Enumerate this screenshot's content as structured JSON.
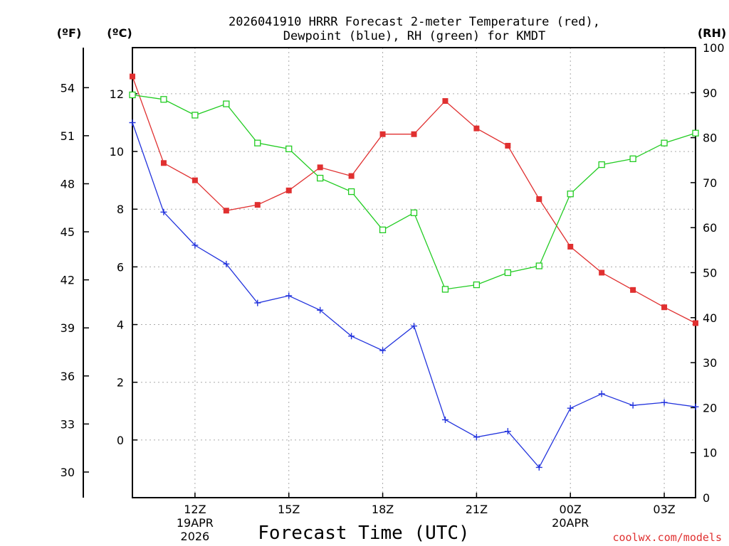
{
  "chart_data": {
    "type": "line",
    "title_line1": "2026041910 HRRR Forecast 2-meter Temperature (red),",
    "title_line2": "Dewpoint (blue), RH (green) for KMDT",
    "xlabel": "Forecast Time (UTC)",
    "credit": "coolwx.com/models",
    "units": {
      "fahrenheit": "(ºF)",
      "celsius": "(ºC)",
      "rh": "(RH)"
    },
    "x_hours": [
      10,
      11,
      12,
      13,
      14,
      15,
      16,
      17,
      18,
      19,
      20,
      21,
      22,
      23,
      24,
      25,
      26,
      27,
      28
    ],
    "xlim": [
      10,
      28
    ],
    "x_ticks": [
      {
        "hour": 12,
        "lines": [
          "12Z",
          "19APR",
          "2026"
        ]
      },
      {
        "hour": 15,
        "lines": [
          "15Z"
        ]
      },
      {
        "hour": 18,
        "lines": [
          "18Z"
        ]
      },
      {
        "hour": 21,
        "lines": [
          "21Z"
        ]
      },
      {
        "hour": 24,
        "lines": [
          "00Z",
          "20APR"
        ]
      },
      {
        "hour": 27,
        "lines": [
          "03Z"
        ]
      }
    ],
    "celsius_axis": {
      "ylim": [
        -2,
        13.6
      ],
      "ticks": [
        0,
        2,
        4,
        6,
        8,
        10,
        12
      ]
    },
    "fahrenheit_axis": {
      "ylim": [
        28.4,
        56.5
      ],
      "ticks": [
        30,
        33,
        36,
        39,
        42,
        45,
        48,
        51,
        54
      ]
    },
    "rh_axis": {
      "ylim": [
        0,
        100
      ],
      "ticks": [
        0,
        10,
        20,
        30,
        40,
        50,
        60,
        70,
        80,
        90,
        100
      ]
    },
    "series": [
      {
        "name": "Temperature",
        "axis": "celsius",
        "color": "#e03030",
        "marker": "filled-square",
        "values": [
          12.6,
          9.6,
          9.0,
          7.95,
          8.15,
          8.65,
          9.45,
          9.15,
          10.6,
          10.6,
          11.75,
          10.8,
          10.2,
          8.35,
          6.7,
          5.8,
          5.2,
          4.6,
          4.05
        ]
      },
      {
        "name": "Dewpoint",
        "axis": "celsius",
        "color": "#2233dd",
        "marker": "plus",
        "values": [
          11.0,
          7.9,
          6.75,
          6.1,
          4.75,
          5.0,
          4.5,
          3.6,
          3.1,
          3.95,
          0.7,
          0.1,
          0.3,
          -0.95,
          1.1,
          1.6,
          1.2,
          1.3,
          1.15
        ]
      },
      {
        "name": "RH",
        "axis": "rh",
        "color": "#22cc22",
        "marker": "open-square",
        "values": [
          89.5,
          88.5,
          85.0,
          87.5,
          78.8,
          77.5,
          71.0,
          68.0,
          59.5,
          63.3,
          46.3,
          47.3,
          50.0,
          51.5,
          67.5,
          74.0,
          75.3,
          78.8,
          81.0
        ]
      }
    ]
  }
}
